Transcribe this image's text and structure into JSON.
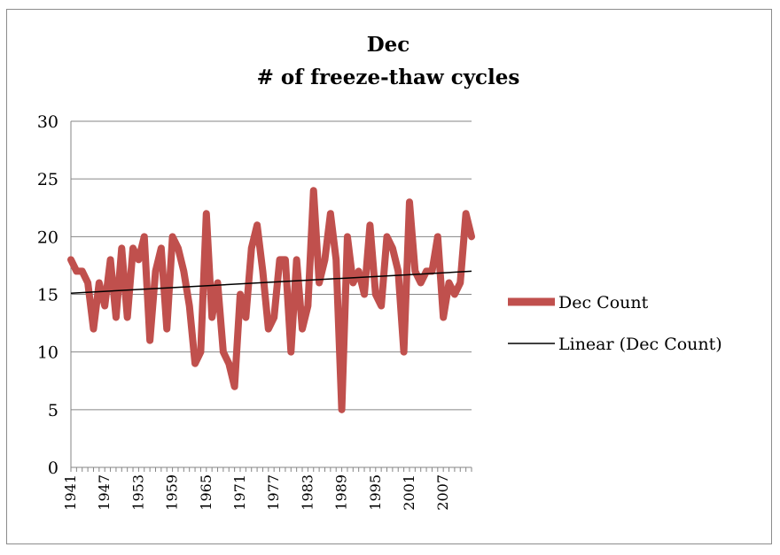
{
  "chart_data": {
    "type": "line",
    "title": [
      "Dec",
      "# of freeze-thaw cycles"
    ],
    "ylim": [
      0,
      30
    ],
    "yticks": [
      0,
      5,
      10,
      15,
      20,
      25,
      30
    ],
    "xtick_labels": [
      "1941",
      "1947",
      "1953",
      "1959",
      "1965",
      "1971",
      "1977",
      "1983",
      "1989",
      "1995",
      "2001",
      "2007"
    ],
    "grid": "horizontal",
    "legend_position": "right",
    "colors": {
      "series": "#c0504d",
      "trend": "#000000",
      "grid": "#868686"
    },
    "x": [
      1941,
      1942,
      1943,
      1944,
      1945,
      1946,
      1947,
      1948,
      1949,
      1950,
      1951,
      1952,
      1953,
      1954,
      1955,
      1956,
      1957,
      1958,
      1959,
      1960,
      1961,
      1962,
      1963,
      1964,
      1965,
      1966,
      1967,
      1968,
      1969,
      1970,
      1971,
      1972,
      1973,
      1974,
      1975,
      1976,
      1977,
      1978,
      1979,
      1980,
      1981,
      1982,
      1983,
      1984,
      1985,
      1986,
      1987,
      1988,
      1989,
      1990,
      1991,
      1992,
      1993,
      1994,
      1995,
      1996,
      1997,
      1998,
      1999,
      2000,
      2001,
      2002,
      2003,
      2004,
      2005,
      2006,
      2007,
      2008,
      2009,
      2010,
      2011,
      2012
    ],
    "series": [
      {
        "name": "Dec Count",
        "values": [
          18,
          17,
          17,
          16,
          12,
          16,
          14,
          18,
          13,
          19,
          13,
          19,
          18,
          20,
          11,
          17,
          19,
          12,
          20,
          19,
          17,
          14,
          9,
          10,
          22,
          13,
          16,
          10,
          9,
          7,
          15,
          13,
          19,
          21,
          17,
          12,
          13,
          18,
          18,
          10,
          18,
          12,
          14,
          24,
          16,
          18,
          22,
          18,
          5,
          20,
          16,
          17,
          15,
          21,
          15,
          14,
          20,
          19,
          17,
          10,
          23,
          17,
          16,
          17,
          17,
          20,
          13,
          16,
          15,
          16,
          22,
          20
        ]
      },
      {
        "name": "Linear (Dec Count)",
        "type": "trendline",
        "x": [
          1941,
          2012
        ],
        "values": [
          15.1,
          17.0
        ]
      }
    ]
  }
}
